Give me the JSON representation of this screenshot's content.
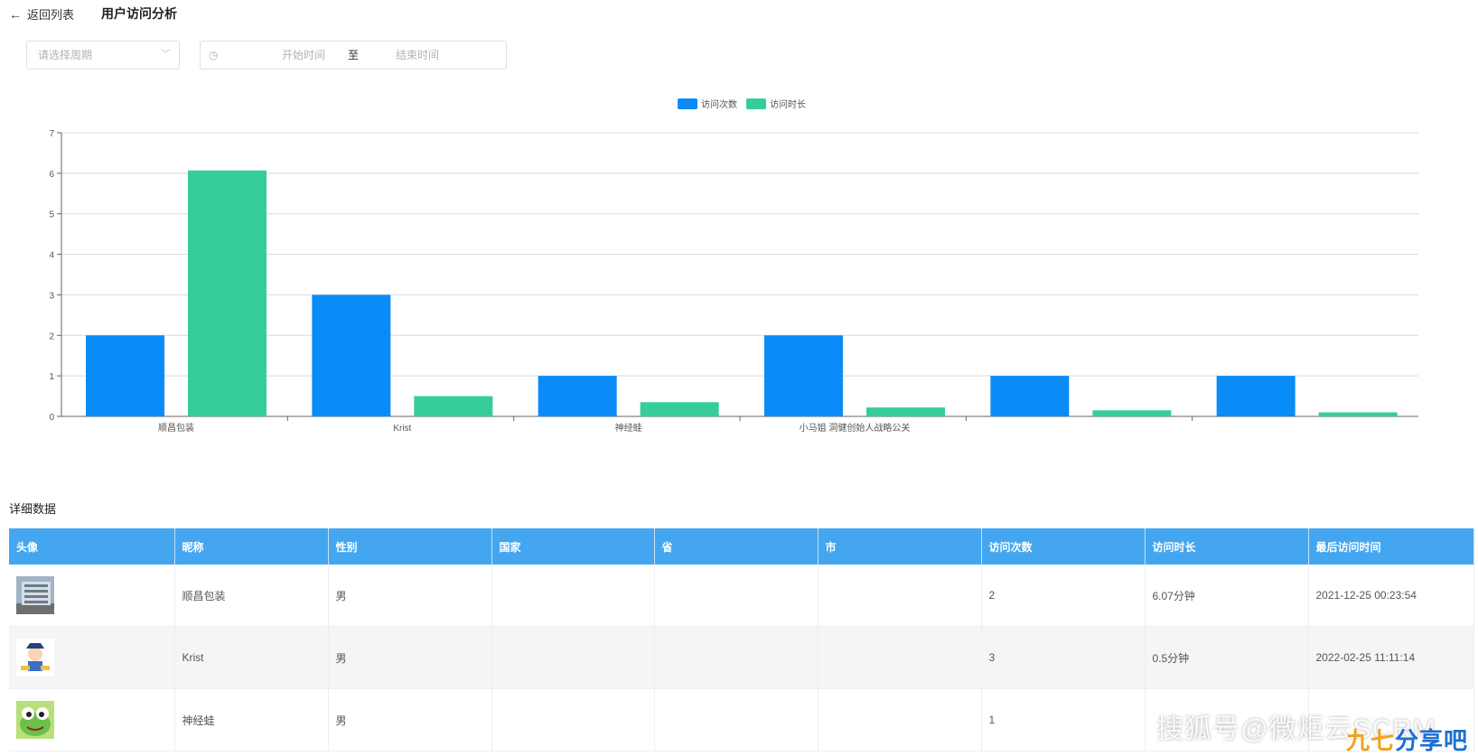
{
  "header": {
    "back_label": "返回列表",
    "title": "用户访问分析"
  },
  "filters": {
    "period_placeholder": "请选择周期",
    "start_placeholder": "开始时间",
    "range_separator": "至",
    "end_placeholder": "结束时间"
  },
  "chart_data": {
    "type": "bar",
    "categories": [
      "顺昌包装",
      "Krist",
      "神经蛙",
      "小马姐 洞健创始人战略公关",
      "",
      ""
    ],
    "series": [
      {
        "name": "访问次数",
        "color": "#0a8cf8",
        "values": [
          2,
          3,
          1,
          2,
          1,
          1
        ]
      },
      {
        "name": "访问时长",
        "color": "#36cd9c",
        "values": [
          6.07,
          0.5,
          0.35,
          0.22,
          0.15,
          0.1
        ]
      }
    ],
    "ylim": [
      0,
      7
    ],
    "yticks": [
      0,
      1,
      2,
      3,
      4,
      5,
      6,
      7
    ],
    "grid": true,
    "legend": "top-center"
  },
  "detail": {
    "title": "详细数据",
    "columns": [
      "头像",
      "昵称",
      "性别",
      "国家",
      "省",
      "市",
      "访问次数",
      "访问时长",
      "最后访问时间"
    ],
    "rows": [
      {
        "avatar": "building-avatar",
        "nickname": "顺昌包装",
        "gender": "男",
        "country": "",
        "province": "",
        "city": "",
        "visits": "2",
        "duration": "6.07分钟",
        "last_visit": "2021-12-25 00:23:54"
      },
      {
        "avatar": "cartoon-avatar",
        "nickname": "Krist",
        "gender": "男",
        "country": "",
        "province": "",
        "city": "",
        "visits": "3",
        "duration": "0.5分钟",
        "last_visit": "2022-02-25 11:11:14"
      },
      {
        "avatar": "frog-avatar",
        "nickname": "神经蛙",
        "gender": "男",
        "country": "",
        "province": "",
        "city": "",
        "visits": "1",
        "duration": "",
        "last_visit": ""
      }
    ]
  },
  "watermark": {
    "text": "搜狐号@微炬云SCRM",
    "brand_a": "九七",
    "brand_b": "分享吧"
  }
}
